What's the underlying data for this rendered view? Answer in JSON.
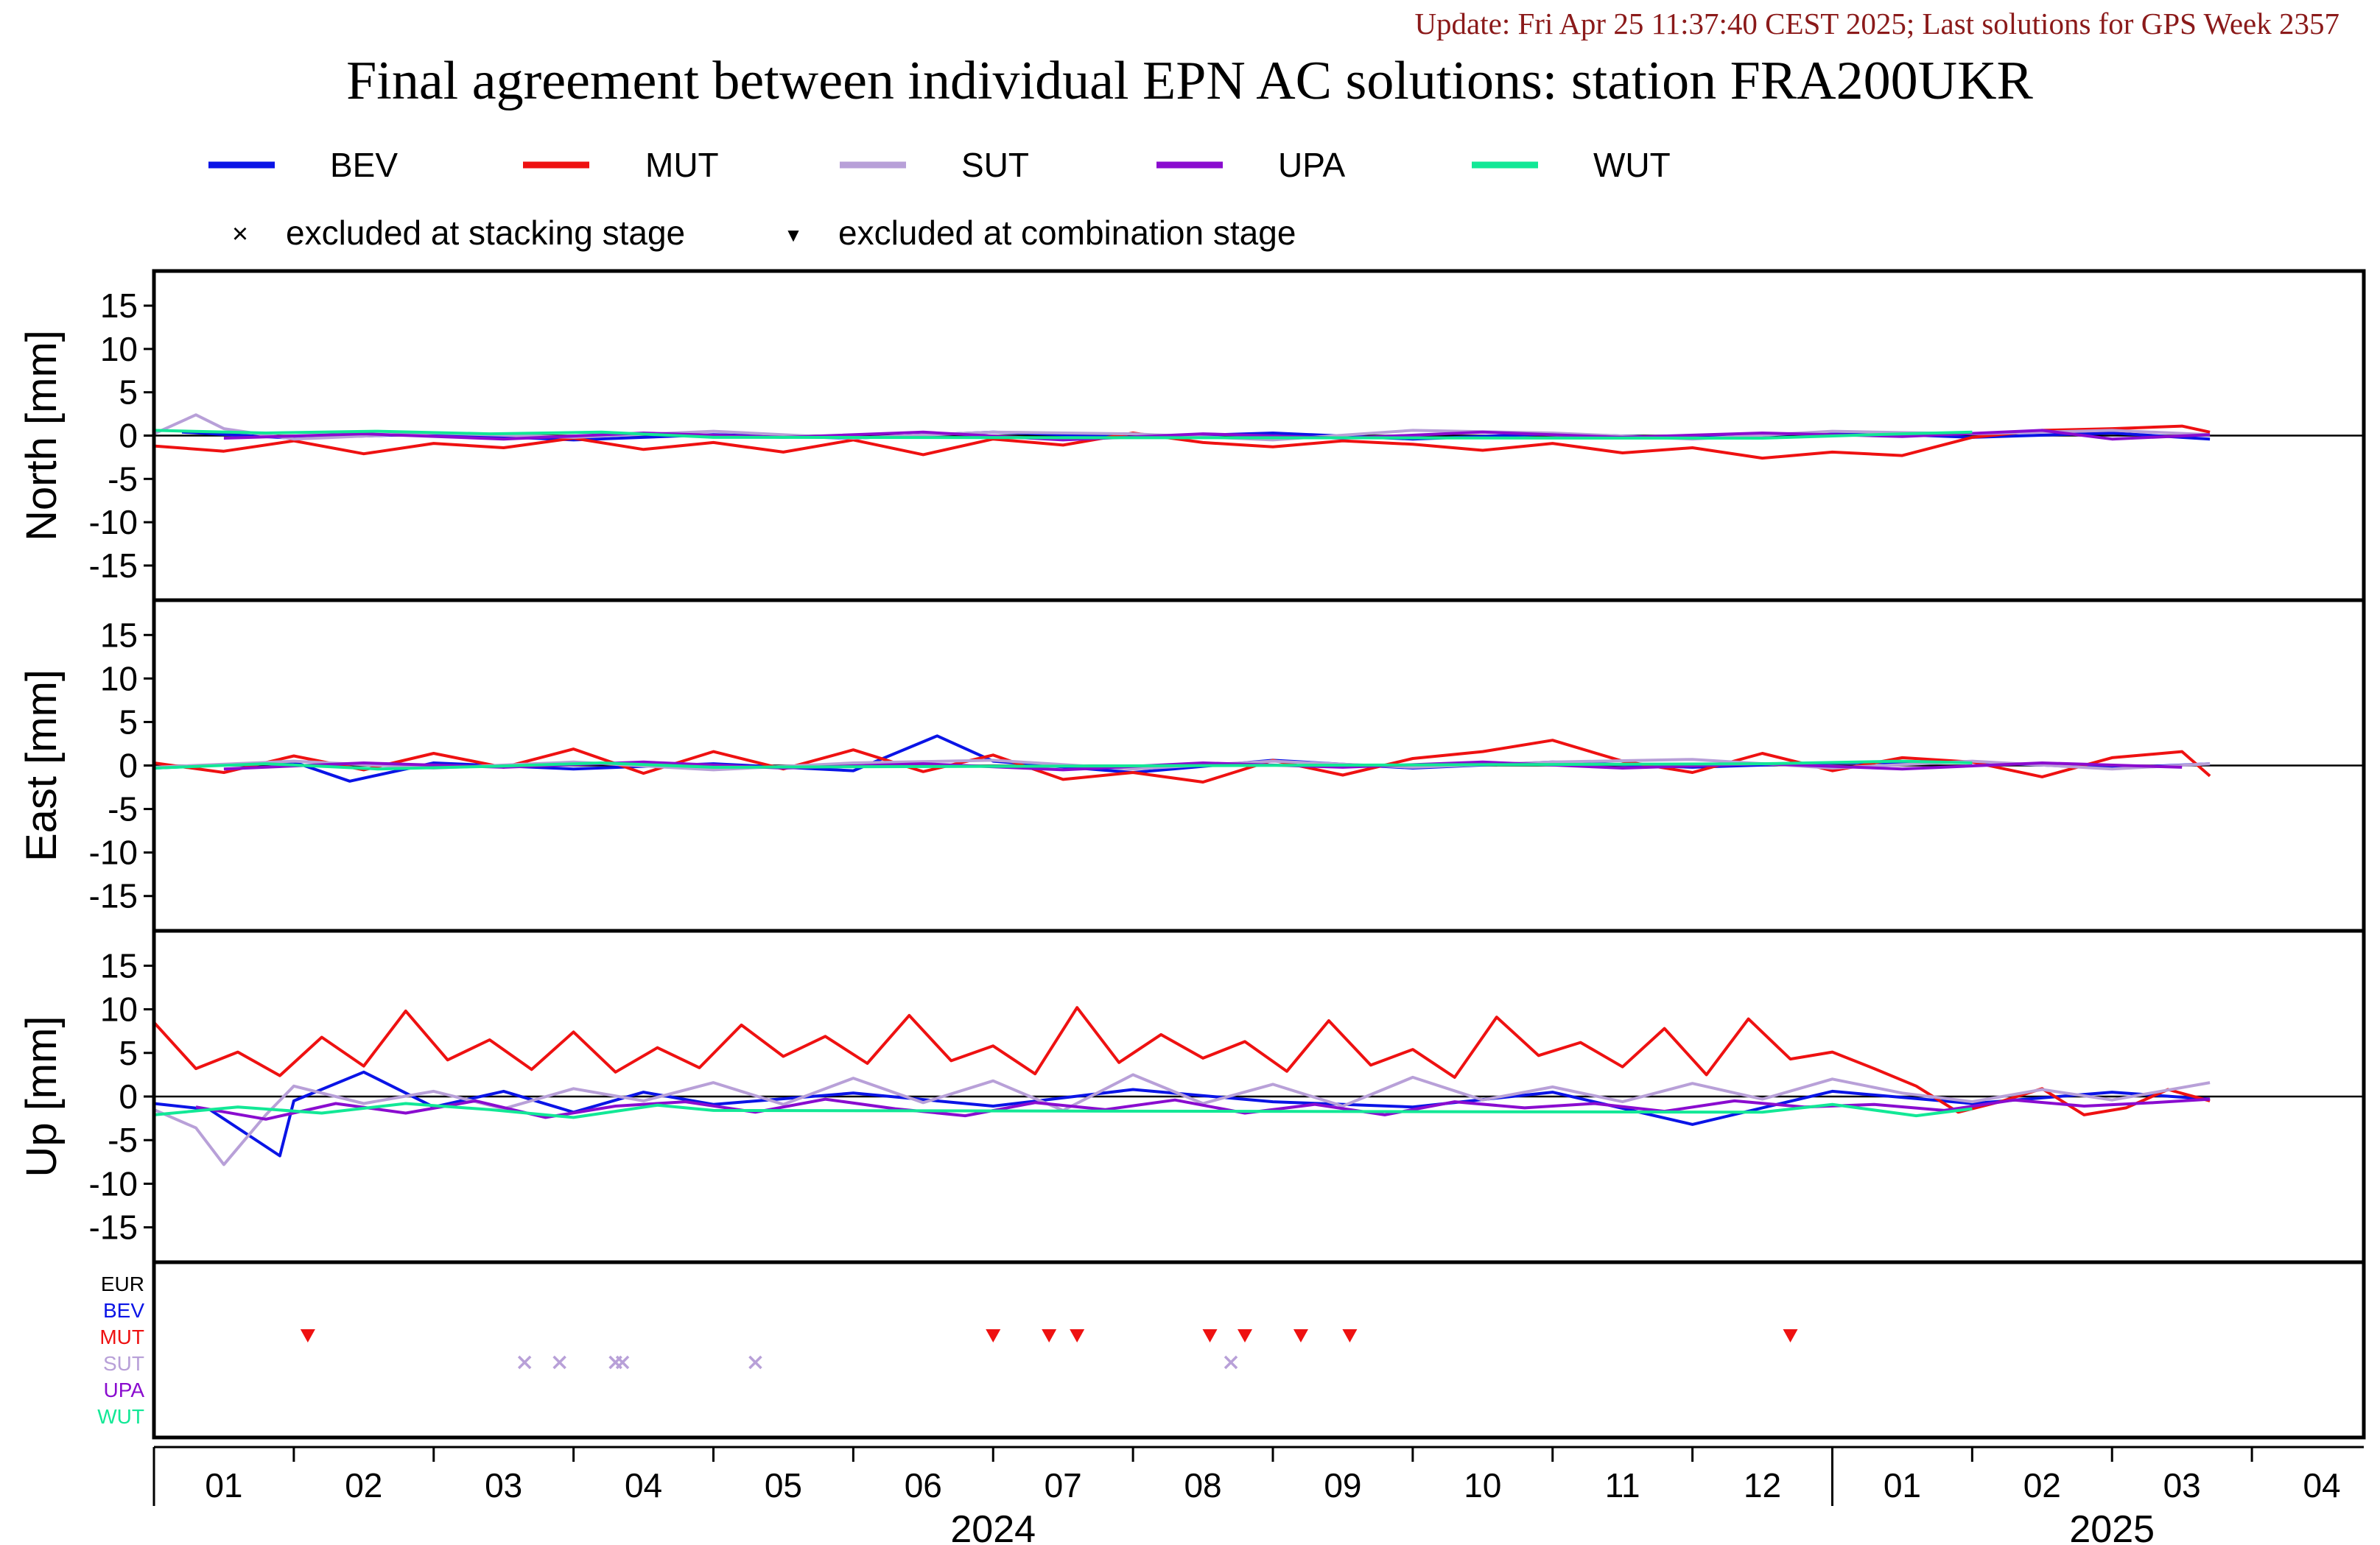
{
  "header": {
    "update_text": "Update: Fri Apr 25 11:37:40 CEST 2025; Last solutions for GPS Week 2357",
    "title": "Final agreement between individual EPN AC solutions: station FRA200UKR"
  },
  "legend": {
    "series": [
      {
        "name": "BEV",
        "color": "#0a14e6"
      },
      {
        "name": "MUT",
        "color": "#ee1111"
      },
      {
        "name": "SUT",
        "color": "#b8a0d8"
      },
      {
        "name": "UPA",
        "color": "#8a0ccf"
      },
      {
        "name": "WUT",
        "color": "#12e896"
      }
    ],
    "markers": [
      {
        "symbol": "×",
        "label": "excluded at stacking stage"
      },
      {
        "symbol": "▼",
        "label": "excluded at combination stage"
      }
    ]
  },
  "colors": {
    "axes": "#000000",
    "header_text": "#8b1a1a"
  },
  "chart_data": [
    {
      "type": "line",
      "ylabel": "North [mm]",
      "ylim": [
        -19,
        19
      ],
      "yticks": [
        15,
        10,
        5,
        0,
        -5,
        -10,
        -15
      ],
      "x_range_months": [
        0,
        15.8
      ],
      "series": [
        {
          "name": "BEV",
          "x": [
            0.2,
            1.0,
            2.0,
            3.0,
            4.0,
            5.0,
            6.0,
            7.0,
            8.0,
            9.0,
            10.0,
            11.0,
            12.0,
            13.0,
            14.0,
            14.7
          ],
          "y": [
            0.4,
            -0.3,
            0.2,
            -0.5,
            0.1,
            -0.3,
            0.4,
            -0.2,
            0.3,
            -0.4,
            0.2,
            -0.3,
            0.4,
            -0.2,
            0.3,
            -0.4
          ]
        },
        {
          "name": "MUT",
          "x": [
            0.0,
            0.5,
            1.0,
            1.5,
            2.0,
            2.5,
            3.0,
            3.5,
            4.0,
            4.5,
            5.0,
            5.5,
            6.0,
            6.5,
            7.0,
            7.5,
            8.0,
            8.5,
            9.0,
            9.5,
            10.0,
            10.5,
            11.0,
            11.5,
            12.0,
            12.5,
            13.0,
            13.5,
            14.0,
            14.5,
            14.7
          ],
          "y": [
            -1.2,
            -1.8,
            -0.6,
            -2.1,
            -0.9,
            -1.4,
            -0.3,
            -1.6,
            -0.8,
            -1.9,
            -0.5,
            -2.2,
            -0.4,
            -1.1,
            0.3,
            -0.8,
            -1.3,
            -0.6,
            -1.0,
            -1.7,
            -0.9,
            -2.0,
            -1.4,
            -2.6,
            -1.9,
            -2.3,
            -0.2,
            0.6,
            0.8,
            1.1,
            0.4
          ]
        },
        {
          "name": "SUT",
          "x": [
            0.0,
            0.3,
            0.5,
            1.0,
            2.0,
            3.0,
            4.0,
            5.0,
            6.0,
            7.0,
            8.0,
            9.0,
            10.0,
            11.0,
            12.0,
            13.0,
            14.0,
            14.7
          ],
          "y": [
            0.2,
            2.4,
            0.8,
            -0.4,
            0.3,
            -0.2,
            0.5,
            -0.3,
            0.4,
            0.2,
            -0.5,
            0.6,
            0.3,
            -0.4,
            0.5,
            0.2,
            0.6,
            0.1
          ]
        },
        {
          "name": "UPA",
          "x": [
            0.5,
            1.5,
            2.5,
            3.5,
            4.5,
            5.5,
            6.5,
            7.5,
            8.5,
            9.5,
            10.5,
            11.5,
            12.5,
            13.5,
            14.0,
            14.7
          ],
          "y": [
            -0.3,
            0.2,
            -0.4,
            0.3,
            -0.2,
            0.4,
            -0.5,
            0.2,
            -0.3,
            0.4,
            -0.2,
            0.3,
            -0.1,
            0.6,
            -0.4,
            0.1
          ]
        },
        {
          "name": "WUT",
          "x": [
            0.0,
            0.8,
            1.6,
            2.4,
            3.2,
            4.0,
            11.5,
            12.5,
            13.0
          ],
          "y": [
            0.6,
            0.3,
            0.5,
            0.2,
            0.4,
            -0.2,
            -0.3,
            0.2,
            0.4
          ]
        }
      ]
    },
    {
      "type": "line",
      "ylabel": "East [mm]",
      "ylim": [
        -19,
        19
      ],
      "yticks": [
        15,
        10,
        5,
        0,
        -5,
        -10,
        -15
      ],
      "x_range_months": [
        0,
        15.8
      ],
      "series": [
        {
          "name": "BEV",
          "x": [
            0.0,
            1.0,
            1.4,
            2.0,
            3.0,
            4.0,
            5.0,
            5.6,
            6.0,
            7.0,
            8.0,
            9.0,
            10.0,
            11.0,
            12.0,
            13.0,
            14.0,
            14.7
          ],
          "y": [
            -0.3,
            0.4,
            -1.8,
            0.3,
            -0.4,
            0.2,
            -0.6,
            3.4,
            0.5,
            -0.8,
            0.6,
            -0.3,
            0.4,
            -0.2,
            0.3,
            0.4,
            -0.3,
            0.2
          ]
        },
        {
          "name": "MUT",
          "x": [
            0.0,
            0.5,
            1.0,
            1.5,
            2.0,
            2.5,
            3.0,
            3.5,
            4.0,
            4.5,
            5.0,
            5.5,
            6.0,
            6.5,
            7.0,
            7.5,
            8.0,
            8.5,
            9.0,
            9.5,
            10.0,
            10.5,
            11.0,
            11.5,
            12.0,
            12.5,
            13.0,
            13.5,
            14.0,
            14.5,
            14.7
          ],
          "y": [
            0.3,
            -0.8,
            1.1,
            -0.5,
            1.4,
            -0.2,
            1.9,
            -0.9,
            1.6,
            -0.4,
            1.8,
            -0.7,
            1.2,
            -1.6,
            -0.8,
            -1.9,
            0.6,
            -1.1,
            0.8,
            1.6,
            2.9,
            0.5,
            -0.8,
            1.4,
            -0.6,
            0.9,
            0.4,
            -1.3,
            0.9,
            1.6,
            -1.2
          ]
        },
        {
          "name": "SUT",
          "x": [
            0.0,
            1.0,
            2.0,
            3.0,
            4.0,
            5.0,
            6.0,
            7.0,
            8.0,
            9.0,
            10.0,
            11.0,
            12.0,
            13.0,
            14.0,
            14.7
          ],
          "y": [
            -0.2,
            0.5,
            -0.3,
            0.4,
            -0.5,
            0.3,
            0.6,
            -0.4,
            0.5,
            -0.2,
            0.4,
            0.7,
            -0.3,
            0.5,
            -0.4,
            0.2
          ]
        },
        {
          "name": "UPA",
          "x": [
            0.5,
            1.5,
            2.5,
            3.5,
            4.5,
            5.5,
            6.5,
            7.5,
            8.5,
            9.5,
            10.5,
            11.5,
            12.5,
            13.5,
            14.5
          ],
          "y": [
            -0.4,
            0.3,
            -0.2,
            0.4,
            -0.3,
            0.2,
            -0.5,
            0.3,
            -0.2,
            0.4,
            -0.3,
            0.2,
            -0.4,
            0.3,
            -0.2
          ]
        },
        {
          "name": "WUT",
          "x": [
            0.0,
            0.8,
            1.6,
            2.4,
            3.2,
            4.0,
            11.5,
            12.5,
            13.0
          ],
          "y": [
            -0.3,
            0.2,
            -0.4,
            -0.1,
            0.3,
            -0.2,
            0.2,
            0.5,
            0.3
          ]
        }
      ]
    },
    {
      "type": "line",
      "ylabel": "Up [mm]",
      "ylim": [
        -19,
        19
      ],
      "yticks": [
        15,
        10,
        5,
        0,
        -5,
        -10,
        -15
      ],
      "x_range_months": [
        0,
        15.8
      ],
      "series": [
        {
          "name": "BEV",
          "x": [
            0.0,
            0.4,
            0.9,
            1.0,
            1.5,
            2.0,
            2.5,
            3.0,
            3.5,
            4.0,
            5.0,
            6.0,
            7.0,
            8.0,
            9.0,
            10.0,
            11.0,
            12.0,
            13.0,
            14.0,
            14.7
          ],
          "y": [
            -0.8,
            -1.5,
            -6.8,
            -0.5,
            2.8,
            -1.2,
            0.6,
            -1.8,
            0.5,
            -0.9,
            0.4,
            -1.1,
            0.8,
            -0.6,
            -1.2,
            0.5,
            -3.2,
            0.6,
            -0.8,
            0.5,
            -0.3
          ]
        },
        {
          "name": "MUT",
          "x": [
            0.0,
            0.3,
            0.6,
            0.9,
            1.2,
            1.5,
            1.8,
            2.1,
            2.4,
            2.7,
            3.0,
            3.3,
            3.6,
            3.9,
            4.2,
            4.5,
            4.8,
            5.1,
            5.4,
            5.7,
            6.0,
            6.3,
            6.6,
            6.9,
            7.2,
            7.5,
            7.8,
            8.1,
            8.4,
            8.7,
            9.0,
            9.3,
            9.6,
            9.9,
            10.2,
            10.5,
            10.8,
            11.1,
            11.4,
            11.7,
            12.0,
            12.3,
            12.6,
            12.9,
            13.2,
            13.5,
            13.8,
            14.1,
            14.4,
            14.7
          ],
          "y": [
            8.5,
            3.2,
            5.1,
            2.4,
            6.8,
            3.5,
            9.8,
            4.2,
            6.5,
            3.1,
            7.4,
            2.8,
            5.6,
            3.3,
            8.2,
            4.6,
            6.9,
            3.8,
            9.3,
            4.1,
            5.8,
            2.6,
            10.2,
            3.9,
            7.1,
            4.4,
            6.3,
            2.9,
            8.7,
            3.6,
            5.4,
            2.2,
            9.1,
            4.7,
            6.2,
            3.4,
            7.8,
            2.5,
            8.9,
            4.3,
            5.1,
            3.2,
            1.2,
            -1.8,
            -0.6,
            0.9,
            -2.1,
            -1.3,
            0.8,
            -0.5
          ]
        },
        {
          "name": "SUT",
          "x": [
            0.0,
            0.3,
            0.5,
            0.8,
            1.0,
            1.5,
            2.0,
            2.5,
            3.0,
            3.5,
            4.0,
            4.5,
            5.0,
            5.5,
            6.0,
            6.5,
            7.0,
            7.5,
            8.0,
            8.5,
            9.0,
            9.5,
            10.0,
            10.5,
            11.0,
            11.5,
            12.0,
            12.5,
            13.0,
            13.5,
            14.0,
            14.7
          ],
          "y": [
            -1.5,
            -3.6,
            -7.8,
            -2.1,
            1.2,
            -0.8,
            0.6,
            -1.4,
            0.9,
            -0.5,
            1.6,
            -0.9,
            2.1,
            -0.7,
            1.8,
            -1.6,
            2.5,
            -0.8,
            1.4,
            -1.1,
            2.2,
            -0.4,
            1.1,
            -0.6,
            1.5,
            -0.3,
            2.0,
            0.4,
            -0.6,
            0.8,
            -0.4,
            1.6
          ]
        },
        {
          "name": "UPA",
          "x": [
            0.3,
            0.8,
            1.3,
            1.8,
            2.3,
            2.8,
            3.3,
            3.8,
            4.3,
            4.8,
            5.3,
            5.8,
            6.3,
            6.8,
            7.3,
            7.8,
            8.3,
            8.8,
            9.3,
            9.8,
            10.3,
            10.8,
            11.3,
            11.8,
            12.3,
            12.8,
            13.3,
            13.8,
            14.3,
            14.7
          ],
          "y": [
            -1.2,
            -2.6,
            -0.8,
            -1.9,
            -0.5,
            -2.4,
            -1.1,
            -0.6,
            -1.8,
            -0.3,
            -1.4,
            -2.2,
            -0.7,
            -1.5,
            -0.4,
            -1.9,
            -0.9,
            -2.1,
            -0.6,
            -1.3,
            -0.8,
            -1.7,
            -0.5,
            -1.2,
            -0.9,
            -1.6,
            -0.4,
            -1.1,
            -0.7,
            -0.3
          ]
        },
        {
          "name": "WUT",
          "x": [
            0.0,
            0.6,
            1.2,
            1.8,
            2.4,
            3.0,
            3.6,
            4.0,
            11.5,
            12.0,
            12.6,
            13.0
          ],
          "y": [
            -2.1,
            -1.2,
            -1.9,
            -0.8,
            -1.5,
            -2.4,
            -1.0,
            -1.6,
            -1.8,
            -0.9,
            -2.2,
            -1.4
          ]
        }
      ]
    },
    {
      "type": "scatter",
      "row_labels": [
        "EUR",
        "BEV",
        "MUT",
        "SUT",
        "UPA",
        "WUT"
      ],
      "row_colors": [
        "#000000",
        "#0a14e6",
        "#ee1111",
        "#b8a0d8",
        "#8a0ccf",
        "#12e896"
      ],
      "excluded_combination": {
        "row": "MUT",
        "x_months": [
          1.1,
          6.0,
          6.4,
          6.6,
          7.55,
          7.8,
          8.2,
          8.55,
          11.7
        ]
      },
      "excluded_stacking": {
        "row": "SUT",
        "x_months": [
          2.65,
          2.9,
          3.3,
          3.35,
          4.3,
          7.7
        ]
      }
    }
  ],
  "x_axis": {
    "month_labels": [
      "01",
      "02",
      "03",
      "04",
      "05",
      "06",
      "07",
      "08",
      "09",
      "10",
      "11",
      "12",
      "01",
      "02",
      "03",
      "04"
    ],
    "year_labels": [
      {
        "text": "2024",
        "center_month": 6.0
      },
      {
        "text": "2025",
        "center_month": 14.0
      }
    ]
  }
}
